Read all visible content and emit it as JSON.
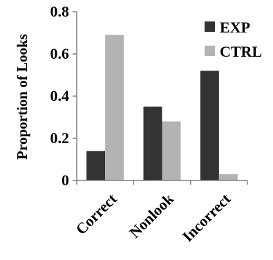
{
  "chart_data": {
    "type": "bar",
    "title": "",
    "xlabel": "",
    "ylabel": "Proportion of Looks",
    "ylim": [
      0,
      0.8
    ],
    "yticks": [
      0,
      0.2,
      0.4,
      0.6,
      0.8
    ],
    "ytick_labels": [
      "0",
      "0.2",
      "0.4",
      "0.6",
      "0.8"
    ],
    "categories": [
      "Correct",
      "Nonlook",
      "Incorrect"
    ],
    "series": [
      {
        "name": "EXP",
        "values": [
          0.14,
          0.35,
          0.52
        ],
        "color": "#333333"
      },
      {
        "name": "CTRL",
        "values": [
          0.69,
          0.28,
          0.03
        ],
        "color": "#b3b3b3"
      }
    ],
    "grid": false,
    "legend_position": "top-right"
  }
}
